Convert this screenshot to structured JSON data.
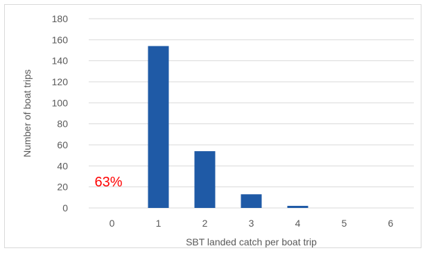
{
  "chart_data": {
    "type": "bar",
    "categories": [
      "0",
      "1",
      "2",
      "3",
      "4",
      "5",
      "6"
    ],
    "values": [
      0,
      154,
      54,
      13,
      2,
      0,
      0
    ],
    "xlabel": "SBT landed catch per boat trip",
    "ylabel": "Number  of boat trips",
    "ylim": [
      0,
      180
    ],
    "yticks": [
      0,
      20,
      40,
      60,
      80,
      100,
      120,
      140,
      160,
      180
    ],
    "grid": true,
    "legend": "none",
    "annotation": {
      "text": "63%",
      "category": "0",
      "y": 25
    },
    "colors": {
      "bar": "#1f5aa6",
      "grid": "#d9d9d9",
      "annotation": "#ff0000",
      "text": "#595959"
    }
  }
}
